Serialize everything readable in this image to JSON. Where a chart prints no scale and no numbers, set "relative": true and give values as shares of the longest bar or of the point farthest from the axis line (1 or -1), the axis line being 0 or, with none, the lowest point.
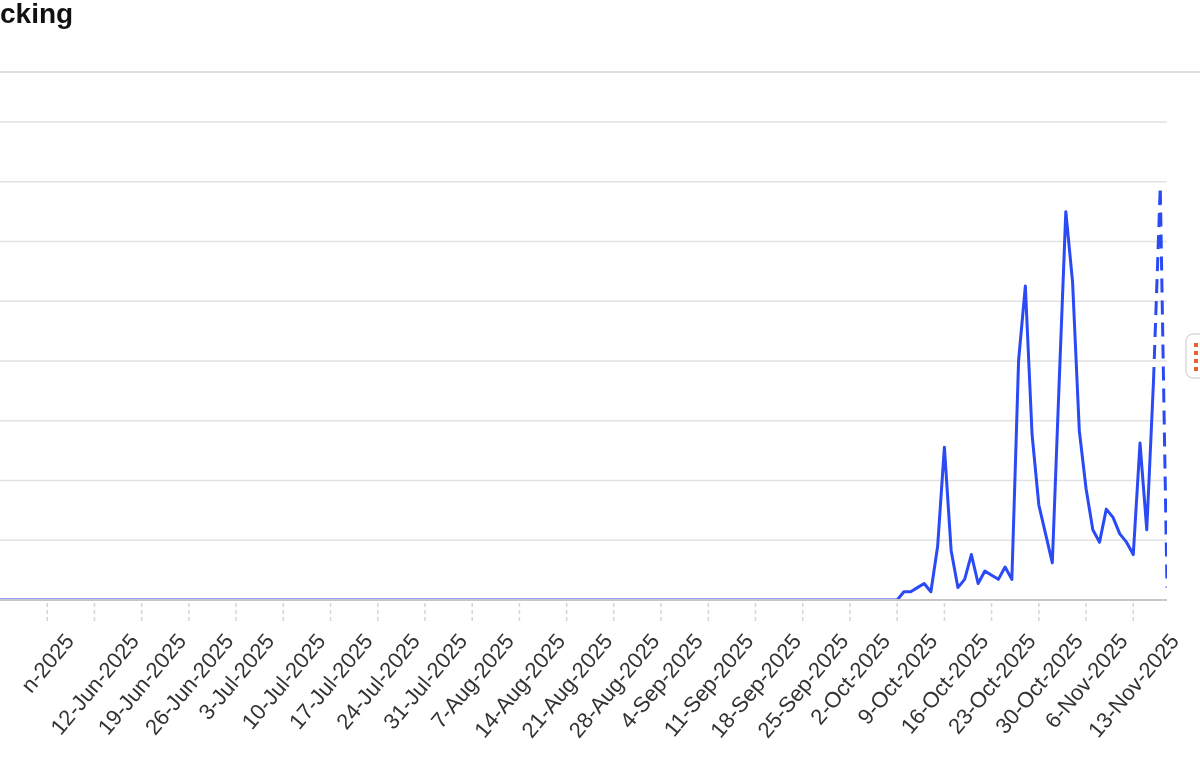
{
  "chart_data": {
    "type": "line",
    "title": "cking",
    "relative": true,
    "xlim": [
      "2025-05-29",
      "2025-11-18"
    ],
    "xticks": [
      {
        "value": "2025-06-05",
        "label": "n-2025"
      },
      {
        "value": "2025-06-12",
        "label": "12-Jun-2025"
      },
      {
        "value": "2025-06-19",
        "label": "19-Jun-2025"
      },
      {
        "value": "2025-06-26",
        "label": "26-Jun-2025"
      },
      {
        "value": "2025-07-03",
        "label": "3-Jul-2025"
      },
      {
        "value": "2025-07-10",
        "label": "10-Jul-2025"
      },
      {
        "value": "2025-07-17",
        "label": "17-Jul-2025"
      },
      {
        "value": "2025-07-24",
        "label": "24-Jul-2025"
      },
      {
        "value": "2025-07-31",
        "label": "31-Jul-2025"
      },
      {
        "value": "2025-08-07",
        "label": "7-Aug-2025"
      },
      {
        "value": "2025-08-14",
        "label": "14-Aug-2025"
      },
      {
        "value": "2025-08-21",
        "label": "21-Aug-2025"
      },
      {
        "value": "2025-08-28",
        "label": "28-Aug-2025"
      },
      {
        "value": "2025-09-04",
        "label": "4-Sep-2025"
      },
      {
        "value": "2025-09-11",
        "label": "11-Sep-2025"
      },
      {
        "value": "2025-09-18",
        "label": "18-Sep-2025"
      },
      {
        "value": "2025-09-25",
        "label": "25-Sep-2025"
      },
      {
        "value": "2025-10-02",
        "label": "2-Oct-2025"
      },
      {
        "value": "2025-10-09",
        "label": "9-Oct-2025"
      },
      {
        "value": "2025-10-16",
        "label": "16-Oct-2025"
      },
      {
        "value": "2025-10-23",
        "label": "23-Oct-2025"
      },
      {
        "value": "2025-10-30",
        "label": "30-Oct-2025"
      },
      {
        "value": "2025-11-06",
        "label": "6-Nov-2025"
      },
      {
        "value": "2025-11-13",
        "label": "13-Nov-2025"
      }
    ],
    "series": [
      {
        "color": "#2a4af5",
        "x": [
          "2025-05-29",
          "2025-10-09",
          "2025-10-10",
          "2025-10-11",
          "2025-10-12",
          "2025-10-13",
          "2025-10-14",
          "2025-10-15",
          "2025-10-16",
          "2025-10-17",
          "2025-10-18",
          "2025-10-19",
          "2025-10-20",
          "2025-10-21",
          "2025-10-22",
          "2025-10-23",
          "2025-10-24",
          "2025-10-25",
          "2025-10-26",
          "2025-10-27",
          "2025-10-28",
          "2025-10-29",
          "2025-10-30",
          "2025-10-31",
          "2025-11-01",
          "2025-11-02",
          "2025-11-03",
          "2025-11-04",
          "2025-11-05",
          "2025-11-06",
          "2025-11-07",
          "2025-11-08",
          "2025-11-09",
          "2025-11-10",
          "2025-11-11",
          "2025-11-12",
          "2025-11-13",
          "2025-11-14",
          "2025-11-15",
          "2025-11-16"
        ],
        "values": [
          0,
          0,
          0.02,
          0.02,
          0.03,
          0.04,
          0.02,
          0.13,
          0.37,
          0.12,
          0.03,
          0.05,
          0.11,
          0.04,
          0.07,
          0.06,
          0.05,
          0.08,
          0.05,
          0.58,
          0.76,
          0.4,
          0.23,
          0.16,
          0.09,
          0.52,
          0.94,
          0.77,
          0.41,
          0.27,
          0.17,
          0.14,
          0.22,
          0.2,
          0.16,
          0.14,
          0.11,
          0.38,
          0.17,
          0.53
        ]
      },
      {
        "color": "#2a4af5",
        "line_style": "dashed",
        "x": [
          "2025-11-16",
          "2025-11-17",
          "2025-11-18"
        ],
        "values": [
          0.53,
          1,
          0.03
        ]
      }
    ],
    "grid": "y",
    "marker": "none",
    "line_style": "solid"
  }
}
